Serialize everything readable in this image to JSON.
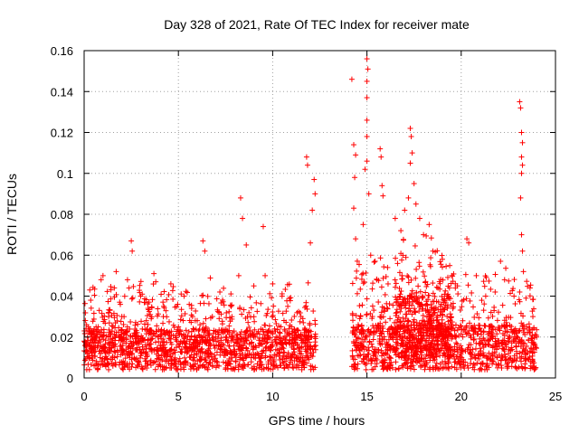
{
  "chart_data": {
    "type": "scatter",
    "title": "Day 328 of 2021, Rate Of TEC Index for receiver mate",
    "xlabel": "GPS time / hours",
    "ylabel": "ROTI / TECUs",
    "xlim": [
      0,
      25
    ],
    "ylim": [
      0,
      0.16
    ],
    "xticks": [
      0,
      5,
      10,
      15,
      20,
      25
    ],
    "yticks": [
      0,
      0.02,
      0.04,
      0.06,
      0.08,
      0.1,
      0.12,
      0.14,
      0.16
    ],
    "xtick_labels": [
      "0",
      "5",
      "10",
      "15",
      "20",
      "25"
    ],
    "ytick_labels": [
      "0",
      "0.02",
      "0.04",
      "0.06",
      "0.08",
      "0.1",
      "0.12",
      "0.14",
      "0.16"
    ],
    "grid": true,
    "marker": "+",
    "marker_color": "#ff0000",
    "series": [
      {
        "name": "ROTI",
        "points": [
          [
            0.0,
            0.018
          ],
          [
            0.1,
            0.024
          ],
          [
            0.2,
            0.012
          ],
          [
            0.3,
            0.043
          ],
          [
            0.35,
            0.038
          ],
          [
            0.5,
            0.022
          ],
          [
            0.7,
            0.015
          ],
          [
            0.9,
            0.048
          ],
          [
            1.0,
            0.05
          ],
          [
            1.3,
            0.032
          ],
          [
            1.6,
            0.044
          ],
          [
            1.7,
            0.052
          ],
          [
            2.0,
            0.03
          ],
          [
            2.3,
            0.048
          ],
          [
            2.5,
            0.067
          ],
          [
            2.55,
            0.062
          ],
          [
            2.8,
            0.02
          ],
          [
            3.0,
            0.04
          ],
          [
            3.3,
            0.028
          ],
          [
            3.7,
            0.051
          ],
          [
            3.8,
            0.047
          ],
          [
            4.2,
            0.03
          ],
          [
            4.6,
            0.046
          ],
          [
            5.0,
            0.025
          ],
          [
            5.3,
            0.04
          ],
          [
            5.7,
            0.034
          ],
          [
            6.0,
            0.028
          ],
          [
            6.3,
            0.067
          ],
          [
            6.4,
            0.062
          ],
          [
            6.8,
            0.03
          ],
          [
            7.2,
            0.042
          ],
          [
            7.5,
            0.02
          ],
          [
            7.8,
            0.035
          ],
          [
            8.2,
            0.05
          ],
          [
            8.3,
            0.088
          ],
          [
            8.4,
            0.078
          ],
          [
            8.6,
            0.065
          ],
          [
            9.0,
            0.045
          ],
          [
            9.5,
            0.074
          ],
          [
            9.6,
            0.05
          ],
          [
            10.0,
            0.046
          ],
          [
            10.5,
            0.04
          ],
          [
            10.8,
            0.035
          ],
          [
            11.0,
            0.025
          ],
          [
            11.5,
            0.03
          ],
          [
            11.8,
            0.108
          ],
          [
            11.85,
            0.104
          ],
          [
            12.2,
            0.097
          ],
          [
            12.25,
            0.09
          ],
          [
            12.0,
            0.066
          ],
          [
            12.1,
            0.082
          ],
          [
            14.2,
            0.146
          ],
          [
            14.3,
            0.114
          ],
          [
            14.4,
            0.109
          ],
          [
            14.35,
            0.098
          ],
          [
            14.3,
            0.083
          ],
          [
            14.4,
            0.068
          ],
          [
            15.0,
            0.156
          ],
          [
            15.05,
            0.151
          ],
          [
            15.0,
            0.145
          ],
          [
            15.0,
            0.137
          ],
          [
            15.0,
            0.126
          ],
          [
            15.0,
            0.118
          ],
          [
            15.0,
            0.106
          ],
          [
            14.9,
            0.102
          ],
          [
            15.1,
            0.09
          ],
          [
            14.8,
            0.075
          ],
          [
            15.2,
            0.06
          ],
          [
            15.7,
            0.112
          ],
          [
            15.75,
            0.108
          ],
          [
            15.8,
            0.094
          ],
          [
            15.85,
            0.089
          ],
          [
            16.5,
            0.078
          ],
          [
            16.8,
            0.072
          ],
          [
            17.0,
            0.082
          ],
          [
            17.2,
            0.088
          ],
          [
            17.3,
            0.122
          ],
          [
            17.35,
            0.118
          ],
          [
            17.4,
            0.11
          ],
          [
            17.3,
            0.105
          ],
          [
            17.5,
            0.095
          ],
          [
            17.6,
            0.085
          ],
          [
            17.8,
            0.078
          ],
          [
            18.0,
            0.07
          ],
          [
            18.3,
            0.075
          ],
          [
            18.5,
            0.062
          ],
          [
            19.0,
            0.058
          ],
          [
            19.5,
            0.05
          ],
          [
            19.8,
            0.045
          ],
          [
            20.3,
            0.068
          ],
          [
            20.4,
            0.066
          ],
          [
            20.8,
            0.05
          ],
          [
            21.3,
            0.04
          ],
          [
            21.8,
            0.042
          ],
          [
            22.3,
            0.048
          ],
          [
            22.8,
            0.04
          ],
          [
            23.1,
            0.135
          ],
          [
            23.15,
            0.132
          ],
          [
            23.2,
            0.12
          ],
          [
            23.25,
            0.115
          ],
          [
            23.2,
            0.108
          ],
          [
            23.25,
            0.104
          ],
          [
            23.2,
            0.1
          ],
          [
            23.15,
            0.088
          ],
          [
            23.2,
            0.07
          ],
          [
            23.25,
            0.062
          ],
          [
            23.3,
            0.052
          ],
          [
            23.1,
            0.042
          ],
          [
            23.8,
            0.03
          ],
          [
            24.0,
            0.02
          ]
        ]
      }
    ],
    "dense_bands": [
      {
        "x_range": [
          0.0,
          12.3
        ],
        "y_base_range": [
          0.004,
          0.024
        ],
        "y_peak_range": [
          0.02,
          0.045
        ]
      },
      {
        "x_range": [
          14.2,
          24.0
        ],
        "y_base_range": [
          0.004,
          0.026
        ],
        "y_peak_range": [
          0.025,
          0.06
        ]
      },
      {
        "x_range": [
          16.5,
          19.5
        ],
        "y_base_range": [
          0.01,
          0.04
        ],
        "y_peak_range": [
          0.04,
          0.075
        ]
      }
    ]
  }
}
